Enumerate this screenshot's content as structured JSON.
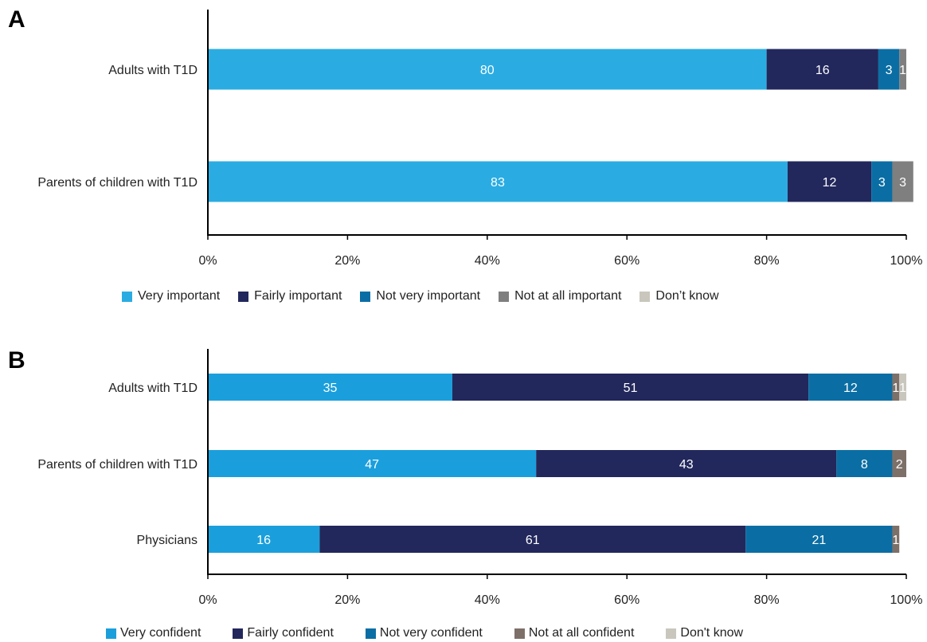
{
  "chart_data": [
    {
      "type": "bar",
      "orientation": "horizontal",
      "stacked": true,
      "panel_label": "A",
      "categories": [
        "Adults with T1D",
        "Parents of children with T1D"
      ],
      "series": [
        {
          "name": "Very important",
          "color": "#2aace2",
          "values": [
            80,
            83
          ],
          "labels": [
            "80",
            "83"
          ]
        },
        {
          "name": "Fairly important",
          "color": "#22285c",
          "values": [
            16,
            12
          ],
          "labels": [
            "16",
            "12"
          ]
        },
        {
          "name": "Not very important",
          "color": "#0a6ea4",
          "values": [
            3,
            3
          ],
          "labels": [
            "3",
            "3"
          ]
        },
        {
          "name": "Not at all important",
          "color": "#7f7f7f",
          "values": [
            1,
            3
          ],
          "labels": [
            "1",
            "3"
          ]
        },
        {
          "name": "Don’t know",
          "color": "#c9c6bd",
          "values": [
            0,
            0
          ],
          "labels": [
            "",
            ""
          ]
        }
      ],
      "xlim": [
        0,
        100
      ],
      "xticks": [
        "0%",
        "20%",
        "40%",
        "60%",
        "80%",
        "100%"
      ],
      "legend_position": "bottom",
      "grid": false
    },
    {
      "type": "bar",
      "orientation": "horizontal",
      "stacked": true,
      "panel_label": "B",
      "categories": [
        "Adults with T1D",
        "Parents of children with T1D",
        "Physicians"
      ],
      "series": [
        {
          "name": "Very confident",
          "color": "#1a9fdc",
          "values": [
            35,
            47,
            16
          ],
          "labels": [
            "35",
            "47",
            "16"
          ]
        },
        {
          "name": "Fairly confident",
          "color": "#22285c",
          "values": [
            51,
            43,
            61
          ],
          "labels": [
            "51",
            "43",
            "61"
          ]
        },
        {
          "name": "Not very confident",
          "color": "#0a6ea4",
          "values": [
            12,
            8,
            21
          ],
          "labels": [
            "12",
            "8",
            "21"
          ]
        },
        {
          "name": "Not at all confident",
          "color": "#7d7069",
          "values": [
            1,
            2,
            1
          ],
          "labels": [
            "1",
            "2",
            "1"
          ]
        },
        {
          "name": "Don't know",
          "color": "#c9c6bd",
          "values": [
            1,
            0,
            0
          ],
          "labels": [
            "1",
            "",
            ""
          ]
        }
      ],
      "xlim": [
        0,
        100
      ],
      "xticks": [
        "0%",
        "20%",
        "40%",
        "60%",
        "80%",
        "100%"
      ],
      "legend_position": "bottom",
      "grid": false
    }
  ]
}
